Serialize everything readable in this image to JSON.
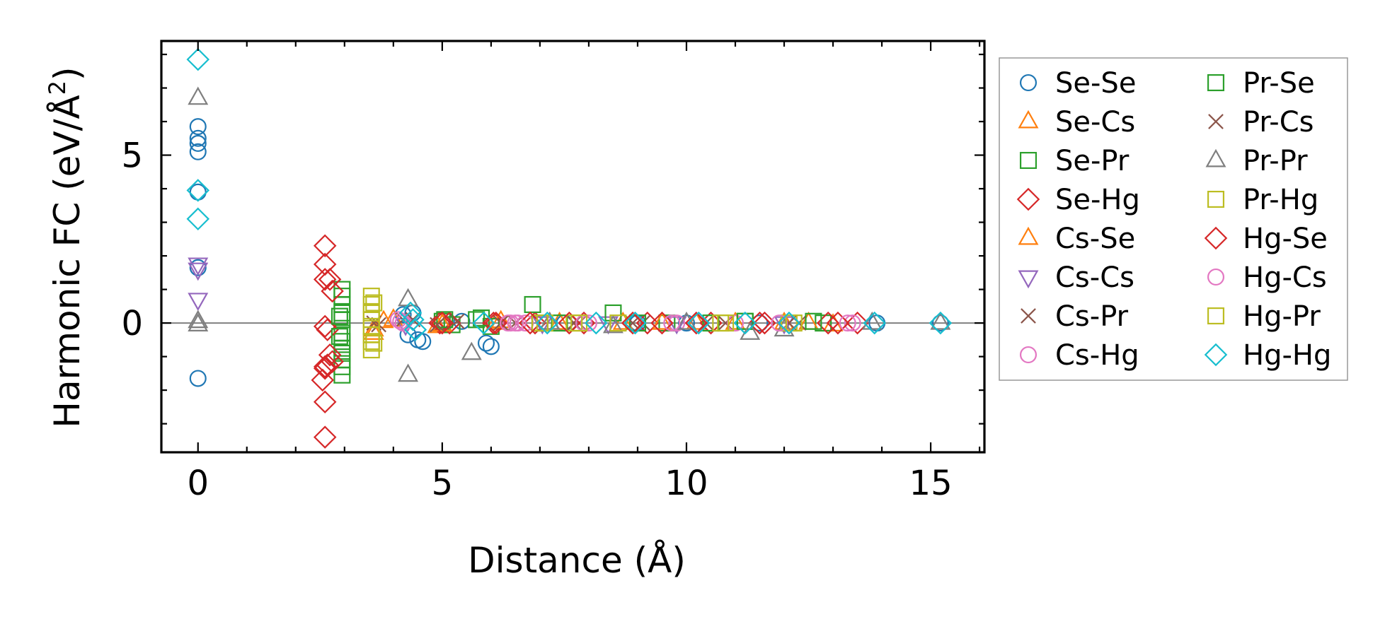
{
  "chart_data": {
    "type": "scatter",
    "xlabel": "Distance (Å)",
    "ylabel_main": "Harmonic FC (eV/Å",
    "ylabel_sup": "2",
    "ylabel_close": ")",
    "xlim": [
      -0.75,
      16.1
    ],
    "ylim": [
      -3.85,
      8.4
    ],
    "xticks": [
      0,
      5,
      10,
      15
    ],
    "xtick_labels": [
      "0",
      "5",
      "10",
      "15"
    ],
    "yticks": [
      0,
      5
    ],
    "ytick_labels": [
      "0",
      "5"
    ],
    "zero_line": true,
    "grid": false,
    "legend_position": "outside-right",
    "legend_columns": 2,
    "series": [
      {
        "name": "Se-Se",
        "marker": "circle",
        "color": "#1f77b4",
        "points": [
          [
            0,
            5.85
          ],
          [
            0,
            5.5
          ],
          [
            0,
            5.35
          ],
          [
            0,
            5.1
          ],
          [
            0,
            3.9
          ],
          [
            0,
            1.65
          ],
          [
            0,
            -1.65
          ],
          [
            4.2,
            0.25
          ],
          [
            4.3,
            -0.35
          ],
          [
            4.4,
            0.3
          ],
          [
            4.5,
            -0.5
          ],
          [
            4.6,
            -0.55
          ],
          [
            5.9,
            -0.6
          ],
          [
            6.0,
            -0.7
          ],
          [
            5.4,
            0.05
          ],
          [
            7.5,
            0.0
          ],
          [
            9.0,
            0.0
          ],
          [
            10.0,
            0.0
          ],
          [
            11.5,
            0.0
          ],
          [
            13.9,
            0.0
          ],
          [
            15.2,
            0.0
          ]
        ]
      },
      {
        "name": "Se-Cs",
        "marker": "triangle-up",
        "color": "#ff7f0e",
        "points": [
          [
            3.6,
            -0.3
          ],
          [
            3.8,
            0.05
          ],
          [
            4.9,
            -0.1
          ],
          [
            6.1,
            0.0
          ],
          [
            7.4,
            0.0
          ],
          [
            8.7,
            0.0
          ],
          [
            10.2,
            0.0
          ],
          [
            12.0,
            0.0
          ],
          [
            13.0,
            -0.05
          ]
        ]
      },
      {
        "name": "Se-Pr",
        "marker": "square",
        "color": "#2ca02c",
        "points": [
          [
            2.95,
            1.0
          ],
          [
            2.95,
            0.8
          ],
          [
            2.95,
            0.55
          ],
          [
            2.95,
            0.3
          ],
          [
            2.95,
            0.1
          ],
          [
            2.95,
            -0.3
          ],
          [
            2.95,
            -0.55
          ],
          [
            2.95,
            -0.75
          ],
          [
            2.95,
            -0.9
          ],
          [
            2.95,
            -1.1
          ],
          [
            2.95,
            -1.3
          ],
          [
            2.95,
            -1.55
          ],
          [
            5.0,
            0.05
          ],
          [
            5.2,
            -0.05
          ],
          [
            5.7,
            0.1
          ],
          [
            6.0,
            -0.1
          ],
          [
            7.4,
            0.0
          ],
          [
            9.6,
            0.0
          ],
          [
            11.2,
            0.05
          ],
          [
            12.8,
            0.0
          ]
        ]
      },
      {
        "name": "Se-Hg",
        "marker": "diamond",
        "color": "#d62728",
        "points": [
          [
            2.6,
            2.3
          ],
          [
            2.6,
            1.75
          ],
          [
            2.7,
            1.3
          ],
          [
            2.75,
            0.95
          ],
          [
            2.6,
            -0.1
          ],
          [
            2.65,
            -0.2
          ],
          [
            2.7,
            -0.95
          ],
          [
            2.75,
            -1.15
          ],
          [
            2.65,
            -1.25
          ],
          [
            2.6,
            -1.35
          ],
          [
            2.55,
            -1.7
          ],
          [
            2.6,
            -2.35
          ],
          [
            2.6,
            -3.4
          ],
          [
            4.95,
            0.0
          ],
          [
            5.15,
            0.0
          ],
          [
            6.05,
            0.0
          ],
          [
            6.9,
            0.0
          ],
          [
            7.9,
            0.0
          ],
          [
            9.2,
            0.0
          ],
          [
            10.5,
            0.0
          ],
          [
            11.5,
            0.0
          ],
          [
            12.9,
            0.0
          ],
          [
            13.5,
            0.0
          ]
        ]
      },
      {
        "name": "Cs-Se",
        "marker": "triangle-up",
        "color": "#ff7f0e",
        "points": [
          [
            3.6,
            -0.2
          ],
          [
            4.0,
            0.1
          ],
          [
            5.0,
            -0.05
          ],
          [
            6.2,
            0.05
          ],
          [
            7.2,
            0.0
          ],
          [
            9.5,
            0.0
          ],
          [
            11.0,
            0.0
          ],
          [
            12.5,
            0.0
          ]
        ]
      },
      {
        "name": "Cs-Cs",
        "marker": "triangle-down",
        "color": "#9467bd",
        "points": [
          [
            0,
            1.75
          ],
          [
            0,
            1.6
          ],
          [
            0,
            0.7
          ],
          [
            4.25,
            -0.05
          ],
          [
            7.05,
            0.0
          ],
          [
            8.4,
            0.0
          ],
          [
            9.8,
            0.0
          ],
          [
            12.0,
            0.0
          ]
        ]
      },
      {
        "name": "Cs-Pr",
        "marker": "x",
        "color": "#8c564b",
        "points": [
          [
            3.6,
            0.0
          ],
          [
            4.2,
            0.1
          ],
          [
            5.3,
            0.05
          ],
          [
            6.5,
            0.0
          ],
          [
            7.8,
            0.0
          ],
          [
            9.1,
            0.0
          ],
          [
            10.8,
            0.0
          ],
          [
            12.3,
            0.0
          ]
        ]
      },
      {
        "name": "Cs-Hg",
        "marker": "circle",
        "color": "#e377c2",
        "points": [
          [
            4.1,
            0.1
          ],
          [
            4.2,
            0.0
          ],
          [
            6.4,
            0.0
          ],
          [
            6.55,
            0.0
          ],
          [
            6.7,
            0.0
          ],
          [
            8.0,
            0.0
          ],
          [
            9.8,
            0.0
          ],
          [
            11.0,
            0.0
          ],
          [
            13.4,
            0.0
          ]
        ]
      },
      {
        "name": "Pr-Se",
        "marker": "square",
        "color": "#2ca02c",
        "points": [
          [
            2.9,
            0.2
          ],
          [
            2.9,
            -0.4
          ],
          [
            5.05,
            0.1
          ],
          [
            5.8,
            0.15
          ],
          [
            6.85,
            0.55
          ],
          [
            7.0,
            0.0
          ],
          [
            8.5,
            0.3
          ],
          [
            9.0,
            0.0
          ],
          [
            10.5,
            0.0
          ],
          [
            11.2,
            0.05
          ],
          [
            12.6,
            0.05
          ]
        ]
      },
      {
        "name": "Pr-Cs",
        "marker": "x",
        "color": "#8c564b",
        "points": [
          [
            3.7,
            -0.05
          ],
          [
            4.4,
            0.1
          ],
          [
            4.9,
            -0.05
          ],
          [
            6.2,
            0.0
          ],
          [
            7.7,
            0.0
          ],
          [
            8.9,
            0.0
          ],
          [
            10.4,
            0.0
          ],
          [
            12.1,
            0.0
          ]
        ]
      },
      {
        "name": "Pr-Pr",
        "marker": "triangle-up",
        "color": "#7f7f7f",
        "points": [
          [
            0,
            6.7
          ],
          [
            0,
            0.05
          ],
          [
            0,
            -0.05
          ],
          [
            4.3,
            0.7
          ],
          [
            4.3,
            -1.55
          ],
          [
            5.6,
            -0.9
          ],
          [
            7.2,
            0.0
          ],
          [
            8.5,
            -0.1
          ],
          [
            10.0,
            0.0
          ],
          [
            11.3,
            -0.3
          ],
          [
            12.0,
            -0.2
          ],
          [
            13.8,
            0.0
          ],
          [
            15.2,
            0.0
          ]
        ]
      },
      {
        "name": "Pr-Hg",
        "marker": "square",
        "color": "#bcbd22",
        "points": [
          [
            3.55,
            0.8
          ],
          [
            3.55,
            0.55
          ],
          [
            3.55,
            0.3
          ],
          [
            3.55,
            0.1
          ],
          [
            3.55,
            -0.1
          ],
          [
            3.55,
            -0.35
          ],
          [
            3.55,
            -0.55
          ],
          [
            3.55,
            -0.8
          ],
          [
            7.0,
            0.0
          ],
          [
            7.7,
            0.0
          ],
          [
            8.6,
            0.0
          ],
          [
            10.7,
            0.0
          ],
          [
            12.1,
            0.0
          ]
        ]
      },
      {
        "name": "Hg-Se",
        "marker": "diamond",
        "color": "#d62728",
        "points": [
          [
            2.6,
            1.3
          ],
          [
            2.6,
            -1.3
          ],
          [
            5.0,
            0.0
          ],
          [
            6.1,
            0.0
          ],
          [
            6.8,
            0.0
          ],
          [
            7.6,
            0.0
          ],
          [
            8.9,
            0.0
          ],
          [
            9.5,
            0.0
          ],
          [
            10.2,
            0.0
          ],
          [
            11.6,
            0.0
          ],
          [
            13.1,
            0.0
          ]
        ]
      },
      {
        "name": "Hg-Cs",
        "marker": "circle",
        "color": "#e377c2",
        "points": [
          [
            4.15,
            0.05
          ],
          [
            6.35,
            0.0
          ],
          [
            6.5,
            0.0
          ],
          [
            7.9,
            0.0
          ],
          [
            9.7,
            0.0
          ],
          [
            11.9,
            0.0
          ],
          [
            13.3,
            0.0
          ]
        ]
      },
      {
        "name": "Hg-Pr",
        "marker": "square",
        "color": "#bcbd22",
        "points": [
          [
            3.6,
            0.6
          ],
          [
            3.6,
            -0.6
          ],
          [
            7.1,
            0.0
          ],
          [
            7.8,
            0.0
          ],
          [
            10.8,
            0.0
          ],
          [
            12.2,
            0.0
          ]
        ]
      },
      {
        "name": "Hg-Hg",
        "marker": "diamond",
        "color": "#17becf",
        "points": [
          [
            0,
            7.85
          ],
          [
            0,
            3.95
          ],
          [
            0,
            3.1
          ],
          [
            4.35,
            0.3
          ],
          [
            4.4,
            0.1
          ],
          [
            4.45,
            -0.2
          ],
          [
            5.85,
            0.0
          ],
          [
            7.15,
            0.0
          ],
          [
            8.15,
            0.0
          ],
          [
            8.95,
            0.0
          ],
          [
            10.25,
            0.0
          ],
          [
            11.2,
            0.0
          ],
          [
            12.1,
            0.0
          ],
          [
            13.85,
            0.0
          ],
          [
            15.2,
            0.0
          ]
        ]
      }
    ]
  }
}
